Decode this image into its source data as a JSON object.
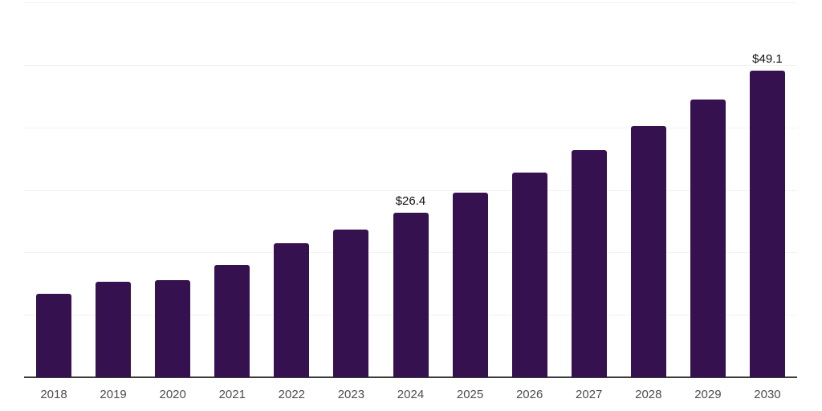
{
  "chart_data": {
    "type": "bar",
    "title": "",
    "xlabel": "",
    "ylabel": "",
    "categories": [
      "2018",
      "2019",
      "2020",
      "2021",
      "2022",
      "2023",
      "2024",
      "2025",
      "2026",
      "2027",
      "2028",
      "2029",
      "2030"
    ],
    "values": [
      13.4,
      15.3,
      15.6,
      18.0,
      21.4,
      23.7,
      26.4,
      29.5,
      32.8,
      36.4,
      40.2,
      44.5,
      49.1
    ],
    "data_labels": [
      "",
      "",
      "",
      "",
      "",
      "",
      "$26.4",
      "",
      "",
      "",
      "",
      "",
      "$49.1"
    ],
    "ylim": [
      0,
      60
    ],
    "gridline_step": 10,
    "grid": true,
    "legend": "none",
    "y_tick_labels_shown": false,
    "bar_color": "#36114F",
    "gridline_color": "#f2f2f2",
    "axis_line_color": "#3b3b3b",
    "tick_label_color": "#4d4d4d",
    "data_label_color": "#111111",
    "background_color": "#ffffff"
  }
}
